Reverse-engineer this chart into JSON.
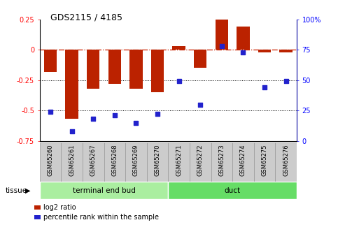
{
  "title": "GDS2115 / 4185",
  "samples": [
    "GSM65260",
    "GSM65261",
    "GSM65267",
    "GSM65268",
    "GSM65269",
    "GSM65270",
    "GSM65271",
    "GSM65272",
    "GSM65273",
    "GSM65274",
    "GSM65275",
    "GSM65276"
  ],
  "log2_ratio": [
    -0.18,
    -0.57,
    -0.32,
    -0.28,
    -0.32,
    -0.35,
    0.03,
    -0.15,
    0.26,
    0.19,
    -0.02,
    -0.02
  ],
  "percentile_rank": [
    24,
    8,
    18,
    21,
    15,
    22,
    49,
    30,
    78,
    73,
    44,
    49
  ],
  "tissue_groups": [
    {
      "label": "terminal end bud",
      "start": 0,
      "end": 6,
      "color": "#AAEEA0"
    },
    {
      "label": "duct",
      "start": 6,
      "end": 12,
      "color": "#66DD66"
    }
  ],
  "ylim_left": [
    -0.75,
    0.25
  ],
  "ylim_right": [
    0,
    100
  ],
  "bar_color": "#BB2200",
  "dot_color": "#2222CC",
  "hline_color": "#CC2200",
  "dotted_line_color": "#000000",
  "background_color": "#ffffff",
  "plot_bg_color": "#ffffff",
  "legend_log2_label": "log2 ratio",
  "legend_pct_label": "percentile rank within the sample",
  "label_box_color": "#CCCCCC",
  "label_box_edge": "#999999"
}
